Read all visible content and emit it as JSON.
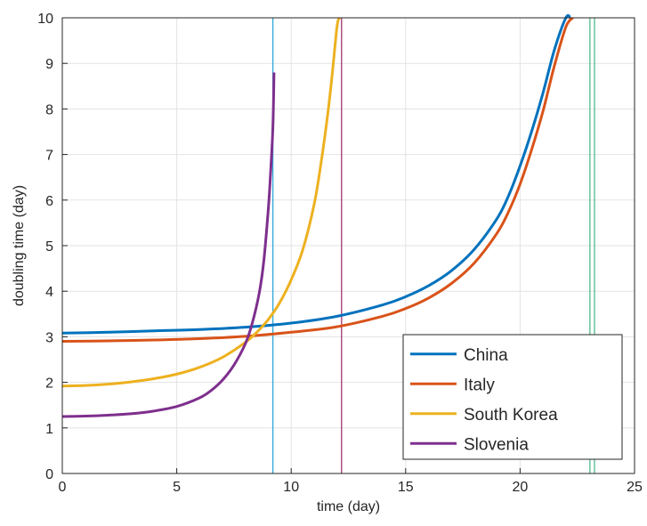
{
  "chart_data": {
    "type": "line",
    "xlabel": "time (day)",
    "ylabel": "doubling time (day)",
    "xlim": [
      0,
      25
    ],
    "ylim": [
      0,
      10
    ],
    "xticks": [
      0,
      5,
      10,
      15,
      20,
      25
    ],
    "yticks": [
      0,
      1,
      2,
      3,
      4,
      5,
      6,
      7,
      8,
      9,
      10
    ],
    "xtick_labels": [
      "0",
      "5",
      "10",
      "15",
      "20",
      "25"
    ],
    "ytick_labels": [
      "0",
      "1",
      "2",
      "3",
      "4",
      "5",
      "6",
      "7",
      "8",
      "9",
      "10"
    ],
    "grid": true,
    "legend_position": "bottom-right",
    "series": [
      {
        "name": "China",
        "color": "#0072BD",
        "x": [
          0,
          2,
          4,
          6,
          8,
          10,
          12,
          14,
          15,
          16,
          17,
          18,
          19,
          19.5,
          20,
          20.5,
          21,
          21.5,
          22,
          22.2
        ],
        "y": [
          3.08,
          3.1,
          3.13,
          3.16,
          3.21,
          3.3,
          3.45,
          3.7,
          3.88,
          4.12,
          4.45,
          4.92,
          5.6,
          6.1,
          6.75,
          7.5,
          8.35,
          9.3,
          10.0,
          10.0
        ]
      },
      {
        "name": "Italy",
        "color": "#D95319",
        "x": [
          0,
          2,
          4,
          6,
          8,
          10,
          12,
          14,
          15,
          16,
          17,
          18,
          19,
          19.5,
          20,
          20.5,
          21,
          21.5,
          22,
          22.3
        ],
        "y": [
          2.9,
          2.91,
          2.93,
          2.96,
          3.01,
          3.1,
          3.22,
          3.45,
          3.62,
          3.85,
          4.17,
          4.62,
          5.28,
          5.75,
          6.35,
          7.1,
          7.95,
          8.95,
          9.8,
          10.0
        ]
      },
      {
        "name": "South Korea",
        "color": "#EDB120",
        "x": [
          0,
          1,
          2,
          3,
          4,
          5,
          6,
          7,
          8,
          8.5,
          9,
          9.5,
          10,
          10.5,
          11,
          11.3,
          11.6,
          11.8,
          12.0,
          12.1
        ],
        "y": [
          1.92,
          1.93,
          1.96,
          2.01,
          2.08,
          2.18,
          2.33,
          2.55,
          2.88,
          3.1,
          3.38,
          3.75,
          4.25,
          4.9,
          5.9,
          6.8,
          7.9,
          8.8,
          9.8,
          10.0
        ]
      },
      {
        "name": "Slovenia",
        "color": "#7E2F8E",
        "x": [
          0,
          1,
          2,
          3,
          4,
          5,
          6,
          6.5,
          7,
          7.5,
          8,
          8.3,
          8.6,
          8.8,
          9.0,
          9.1,
          9.2,
          9.25
        ],
        "y": [
          1.25,
          1.26,
          1.28,
          1.31,
          1.37,
          1.47,
          1.66,
          1.82,
          2.05,
          2.38,
          2.85,
          3.3,
          3.95,
          4.65,
          5.8,
          6.6,
          7.6,
          8.8
        ]
      }
    ],
    "vertical_lines": [
      {
        "x": 9.2,
        "color": "#2FA8D8"
      },
      {
        "x": 12.2,
        "color": "#A2346E"
      },
      {
        "x": 23.05,
        "color": "#4DBA8C"
      },
      {
        "x": 23.25,
        "color": "#4DBA8C"
      }
    ]
  }
}
